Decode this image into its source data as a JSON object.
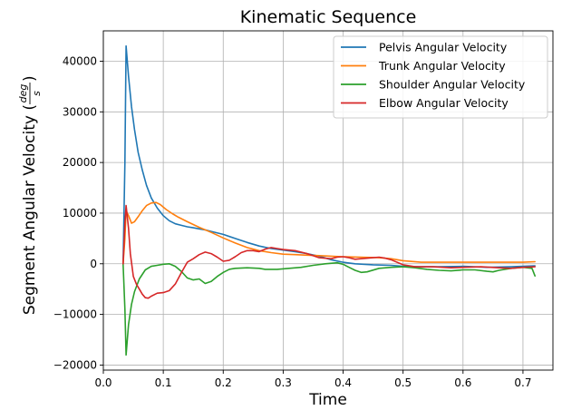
{
  "chart_data": {
    "type": "line",
    "title": "Kinematic Sequence",
    "xlabel": "Time",
    "ylabel": "Segment Angular Velocity (deg/s)",
    "ylabel_prefix": "Segment Angular Velocity (",
    "ylabel_frac_num": "deg",
    "ylabel_frac_den": "s",
    "ylabel_suffix": ")",
    "xlim": [
      0.0,
      0.75
    ],
    "ylim": [
      -21000,
      46000
    ],
    "x_ticks": [
      0.0,
      0.1,
      0.2,
      0.3,
      0.4,
      0.5,
      0.6,
      0.7
    ],
    "x_tick_labels": [
      "0.0",
      "0.1",
      "0.2",
      "0.3",
      "0.4",
      "0.5",
      "0.6",
      "0.7"
    ],
    "y_ticks": [
      -20000,
      -10000,
      0,
      10000,
      20000,
      30000,
      40000
    ],
    "y_tick_labels": [
      "−20000",
      "−10000",
      "0",
      "10000",
      "20000",
      "30000",
      "40000"
    ],
    "grid": true,
    "legend_position": "top-right",
    "series": [
      {
        "name": "Pelvis Angular Velocity",
        "color": "#1f77b4",
        "points": [
          [
            0.033,
            0
          ],
          [
            0.036,
            20000
          ],
          [
            0.038,
            43000
          ],
          [
            0.042,
            37000
          ],
          [
            0.047,
            31000
          ],
          [
            0.052,
            26500
          ],
          [
            0.058,
            22000
          ],
          [
            0.065,
            18500
          ],
          [
            0.072,
            15500
          ],
          [
            0.08,
            13000
          ],
          [
            0.09,
            11000
          ],
          [
            0.1,
            9500
          ],
          [
            0.11,
            8500
          ],
          [
            0.12,
            7900
          ],
          [
            0.13,
            7600
          ],
          [
            0.14,
            7300
          ],
          [
            0.15,
            7100
          ],
          [
            0.16,
            6900
          ],
          [
            0.17,
            6700
          ],
          [
            0.18,
            6400
          ],
          [
            0.2,
            5800
          ],
          [
            0.22,
            5000
          ],
          [
            0.24,
            4200
          ],
          [
            0.26,
            3500
          ],
          [
            0.28,
            3000
          ],
          [
            0.3,
            2700
          ],
          [
            0.32,
            2400
          ],
          [
            0.34,
            2000
          ],
          [
            0.36,
            1500
          ],
          [
            0.38,
            800
          ],
          [
            0.4,
            300
          ],
          [
            0.42,
            0
          ],
          [
            0.45,
            -200
          ],
          [
            0.48,
            -300
          ],
          [
            0.5,
            -500
          ],
          [
            0.53,
            -600
          ],
          [
            0.56,
            -600
          ],
          [
            0.6,
            -500
          ],
          [
            0.64,
            -700
          ],
          [
            0.68,
            -600
          ],
          [
            0.7,
            -500
          ],
          [
            0.72,
            -400
          ]
        ]
      },
      {
        "name": "Trunk Angular Velocity",
        "color": "#ff7f0e",
        "points": [
          [
            0.033,
            0
          ],
          [
            0.036,
            5000
          ],
          [
            0.038,
            10500
          ],
          [
            0.042,
            9500
          ],
          [
            0.047,
            8000
          ],
          [
            0.052,
            8300
          ],
          [
            0.058,
            9300
          ],
          [
            0.065,
            10500
          ],
          [
            0.072,
            11500
          ],
          [
            0.08,
            12000
          ],
          [
            0.088,
            12100
          ],
          [
            0.095,
            11700
          ],
          [
            0.105,
            10700
          ],
          [
            0.115,
            9900
          ],
          [
            0.125,
            9200
          ],
          [
            0.14,
            8300
          ],
          [
            0.16,
            7200
          ],
          [
            0.18,
            6200
          ],
          [
            0.2,
            5100
          ],
          [
            0.22,
            4100
          ],
          [
            0.24,
            3200
          ],
          [
            0.26,
            2600
          ],
          [
            0.28,
            2200
          ],
          [
            0.3,
            1900
          ],
          [
            0.32,
            1800
          ],
          [
            0.34,
            1700
          ],
          [
            0.36,
            1600
          ],
          [
            0.38,
            1500
          ],
          [
            0.4,
            1400
          ],
          [
            0.43,
            1300
          ],
          [
            0.46,
            1200
          ],
          [
            0.48,
            1000
          ],
          [
            0.5,
            600
          ],
          [
            0.53,
            300
          ],
          [
            0.56,
            300
          ],
          [
            0.6,
            300
          ],
          [
            0.65,
            300
          ],
          [
            0.68,
            300
          ],
          [
            0.7,
            300
          ],
          [
            0.72,
            400
          ]
        ]
      },
      {
        "name": "Shoulder Angular Velocity",
        "color": "#2ca02c",
        "points": [
          [
            0.033,
            0
          ],
          [
            0.036,
            -9000
          ],
          [
            0.038,
            -18000
          ],
          [
            0.042,
            -12000
          ],
          [
            0.047,
            -8000
          ],
          [
            0.052,
            -5500
          ],
          [
            0.06,
            -3000
          ],
          [
            0.07,
            -1200
          ],
          [
            0.08,
            -500
          ],
          [
            0.09,
            -300
          ],
          [
            0.1,
            -100
          ],
          [
            0.11,
            0
          ],
          [
            0.12,
            -500
          ],
          [
            0.13,
            -1500
          ],
          [
            0.14,
            -2800
          ],
          [
            0.15,
            -3200
          ],
          [
            0.16,
            -3000
          ],
          [
            0.17,
            -3900
          ],
          [
            0.18,
            -3500
          ],
          [
            0.19,
            -2500
          ],
          [
            0.2,
            -1700
          ],
          [
            0.21,
            -1100
          ],
          [
            0.22,
            -900
          ],
          [
            0.24,
            -800
          ],
          [
            0.26,
            -900
          ],
          [
            0.27,
            -1100
          ],
          [
            0.29,
            -1100
          ],
          [
            0.31,
            -900
          ],
          [
            0.33,
            -700
          ],
          [
            0.35,
            -300
          ],
          [
            0.37,
            0
          ],
          [
            0.39,
            200
          ],
          [
            0.4,
            -100
          ],
          [
            0.41,
            -700
          ],
          [
            0.42,
            -1300
          ],
          [
            0.43,
            -1700
          ],
          [
            0.44,
            -1600
          ],
          [
            0.46,
            -900
          ],
          [
            0.48,
            -700
          ],
          [
            0.5,
            -600
          ],
          [
            0.52,
            -800
          ],
          [
            0.54,
            -1100
          ],
          [
            0.56,
            -1300
          ],
          [
            0.58,
            -1400
          ],
          [
            0.6,
            -1200
          ],
          [
            0.62,
            -1200
          ],
          [
            0.64,
            -1500
          ],
          [
            0.65,
            -1600
          ],
          [
            0.66,
            -1300
          ],
          [
            0.68,
            -900
          ],
          [
            0.7,
            -700
          ],
          [
            0.715,
            -900
          ],
          [
            0.72,
            -2400
          ]
        ]
      },
      {
        "name": "Elbow Angular Velocity",
        "color": "#d62728",
        "points": [
          [
            0.033,
            0
          ],
          [
            0.036,
            8000
          ],
          [
            0.038,
            11500
          ],
          [
            0.042,
            7000
          ],
          [
            0.045,
            2000
          ],
          [
            0.05,
            -2500
          ],
          [
            0.055,
            -4000
          ],
          [
            0.06,
            -5000
          ],
          [
            0.065,
            -6000
          ],
          [
            0.07,
            -6700
          ],
          [
            0.075,
            -6800
          ],
          [
            0.08,
            -6400
          ],
          [
            0.09,
            -5800
          ],
          [
            0.1,
            -5700
          ],
          [
            0.11,
            -5300
          ],
          [
            0.12,
            -4000
          ],
          [
            0.13,
            -1800
          ],
          [
            0.14,
            300
          ],
          [
            0.15,
            1000
          ],
          [
            0.16,
            1800
          ],
          [
            0.17,
            2300
          ],
          [
            0.18,
            2000
          ],
          [
            0.19,
            1300
          ],
          [
            0.2,
            500
          ],
          [
            0.21,
            700
          ],
          [
            0.22,
            1400
          ],
          [
            0.23,
            2200
          ],
          [
            0.24,
            2600
          ],
          [
            0.25,
            2600
          ],
          [
            0.26,
            2400
          ],
          [
            0.27,
            2900
          ],
          [
            0.28,
            3200
          ],
          [
            0.29,
            3000
          ],
          [
            0.3,
            2800
          ],
          [
            0.32,
            2600
          ],
          [
            0.34,
            2000
          ],
          [
            0.36,
            1200
          ],
          [
            0.38,
            1000
          ],
          [
            0.39,
            1300
          ],
          [
            0.4,
            1400
          ],
          [
            0.41,
            1200
          ],
          [
            0.42,
            900
          ],
          [
            0.43,
            1000
          ],
          [
            0.45,
            1200
          ],
          [
            0.46,
            1300
          ],
          [
            0.47,
            1100
          ],
          [
            0.48,
            800
          ],
          [
            0.5,
            -200
          ],
          [
            0.52,
            -600
          ],
          [
            0.55,
            -600
          ],
          [
            0.58,
            -800
          ],
          [
            0.6,
            -700
          ],
          [
            0.63,
            -600
          ],
          [
            0.66,
            -800
          ],
          [
            0.68,
            -900
          ],
          [
            0.7,
            -700
          ],
          [
            0.72,
            -600
          ]
        ]
      }
    ]
  }
}
